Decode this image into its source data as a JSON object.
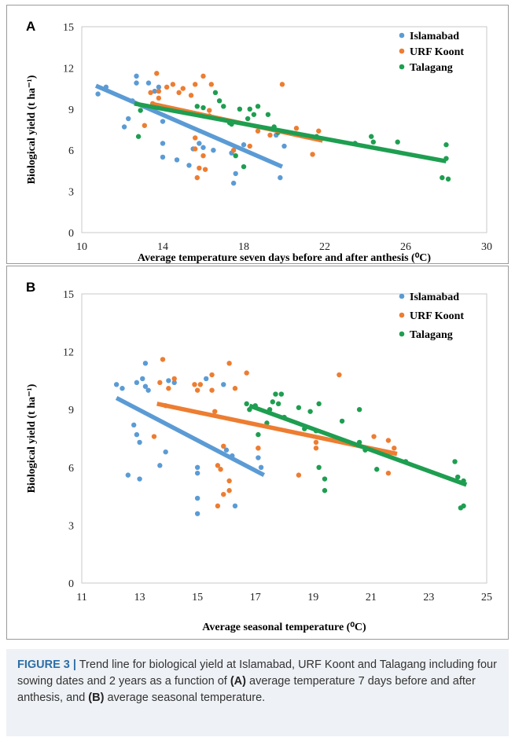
{
  "chart_data": [
    {
      "panel": "A",
      "type": "scatter",
      "xlabel": "Average temperature seven days before and after anthesis (⁰C)",
      "ylabel": "Biological yield (t ha⁻¹)",
      "xlim": [
        10,
        30
      ],
      "ylim": [
        0,
        15
      ],
      "xticks": [
        "10",
        "14",
        "18",
        "22",
        "26",
        "30"
      ],
      "yticks": [
        "0",
        "3",
        "6",
        "9",
        "12",
        "15"
      ],
      "legend_position": "top-right",
      "series": [
        {
          "name": "Islamabad",
          "color": "#5b9bd5",
          "points": [
            [
              10.8,
              10.1
            ],
            [
              11.2,
              10.6
            ],
            [
              12.1,
              7.7
            ],
            [
              12.3,
              8.3
            ],
            [
              12.5,
              9.6
            ],
            [
              12.7,
              10.9
            ],
            [
              12.7,
              11.4
            ],
            [
              13.3,
              10.9
            ],
            [
              13.6,
              10.3
            ],
            [
              13.8,
              10.6
            ],
            [
              14.0,
              8.1
            ],
            [
              14.0,
              6.5
            ],
            [
              14.0,
              5.5
            ],
            [
              14.7,
              5.3
            ],
            [
              15.3,
              4.9
            ],
            [
              15.5,
              6.1
            ],
            [
              15.8,
              6.5
            ],
            [
              16.0,
              6.2
            ],
            [
              16.5,
              6.0
            ],
            [
              17.4,
              5.8
            ],
            [
              17.6,
              4.3
            ],
            [
              17.5,
              3.6
            ],
            [
              18.0,
              6.4
            ],
            [
              19.6,
              7.1
            ],
            [
              19.8,
              4.0
            ],
            [
              20.0,
              6.3
            ]
          ],
          "trend": [
            [
              10.7,
              10.7
            ],
            [
              19.9,
              4.8
            ]
          ]
        },
        {
          "name": "URF Koont",
          "color": "#ed7d31",
          "points": [
            [
              13.1,
              7.8
            ],
            [
              13.4,
              10.2
            ],
            [
              13.5,
              9.4
            ],
            [
              13.7,
              11.6
            ],
            [
              13.8,
              10.3
            ],
            [
              13.8,
              9.8
            ],
            [
              14.2,
              10.6
            ],
            [
              14.5,
              10.8
            ],
            [
              14.8,
              10.2
            ],
            [
              15.0,
              10.5
            ],
            [
              15.4,
              10.0
            ],
            [
              15.6,
              10.8
            ],
            [
              15.6,
              6.9
            ],
            [
              15.6,
              6.1
            ],
            [
              15.7,
              4.0
            ],
            [
              15.8,
              4.7
            ],
            [
              16.0,
              11.4
            ],
            [
              16.0,
              5.6
            ],
            [
              16.1,
              4.6
            ],
            [
              16.3,
              8.9
            ],
            [
              16.4,
              10.8
            ],
            [
              17.5,
              6.0
            ],
            [
              18.3,
              6.3
            ],
            [
              18.7,
              7.4
            ],
            [
              19.3,
              7.1
            ],
            [
              19.9,
              10.8
            ],
            [
              20.6,
              7.6
            ],
            [
              21.4,
              5.7
            ],
            [
              21.7,
              7.4
            ]
          ],
          "trend": [
            [
              13.4,
              9.4
            ],
            [
              21.9,
              6.7
            ]
          ]
        },
        {
          "name": "Talagang",
          "color": "#1e9e50",
          "points": [
            [
              12.8,
              7.0
            ],
            [
              12.9,
              8.9
            ],
            [
              15.7,
              9.2
            ],
            [
              16.0,
              9.1
            ],
            [
              16.3,
              8.5
            ],
            [
              16.6,
              10.2
            ],
            [
              16.8,
              9.6
            ],
            [
              17.0,
              9.2
            ],
            [
              17.3,
              8.0
            ],
            [
              17.4,
              7.9
            ],
            [
              17.6,
              5.6
            ],
            [
              17.8,
              9.0
            ],
            [
              18.0,
              4.8
            ],
            [
              18.2,
              8.3
            ],
            [
              18.3,
              9.0
            ],
            [
              18.5,
              8.6
            ],
            [
              18.7,
              9.2
            ],
            [
              19.2,
              8.6
            ],
            [
              19.5,
              7.7
            ],
            [
              19.7,
              7.3
            ],
            [
              21.6,
              7.0
            ],
            [
              21.8,
              6.8
            ],
            [
              23.5,
              6.5
            ],
            [
              24.3,
              7.0
            ],
            [
              24.4,
              6.6
            ],
            [
              25.6,
              6.6
            ],
            [
              28.0,
              6.4
            ],
            [
              28.0,
              5.4
            ],
            [
              28.1,
              3.9
            ],
            [
              27.8,
              4.0
            ]
          ],
          "trend": [
            [
              12.6,
              9.4
            ],
            [
              28.0,
              5.2
            ]
          ]
        }
      ]
    },
    {
      "panel": "B",
      "type": "scatter",
      "xlabel": "Average seasonal temperature (⁰C)",
      "ylabel": "Biological yield (t ha⁻¹)",
      "xlim": [
        11,
        25
      ],
      "ylim": [
        0,
        15
      ],
      "xticks": [
        "11",
        "13",
        "15",
        "17",
        "19",
        "21",
        "23",
        "25"
      ],
      "yticks": [
        "0",
        "3",
        "6",
        "9",
        "12",
        "15"
      ],
      "legend_position": "top-right",
      "series": [
        {
          "name": "Islamabad",
          "color": "#5b9bd5",
          "points": [
            [
              12.2,
              10.3
            ],
            [
              12.4,
              10.1
            ],
            [
              12.6,
              5.6
            ],
            [
              12.8,
              8.2
            ],
            [
              12.9,
              7.7
            ],
            [
              12.9,
              10.4
            ],
            [
              13.0,
              7.3
            ],
            [
              13.0,
              5.4
            ],
            [
              13.1,
              10.6
            ],
            [
              13.2,
              10.2
            ],
            [
              13.2,
              11.4
            ],
            [
              13.3,
              10.0
            ],
            [
              13.7,
              6.1
            ],
            [
              13.9,
              6.8
            ],
            [
              14.0,
              10.5
            ],
            [
              14.2,
              10.4
            ],
            [
              15.0,
              5.7
            ],
            [
              15.0,
              6.0
            ],
            [
              15.0,
              4.4
            ],
            [
              15.0,
              3.6
            ],
            [
              15.3,
              10.6
            ],
            [
              15.9,
              10.3
            ],
            [
              16.0,
              6.9
            ],
            [
              16.2,
              6.6
            ],
            [
              16.3,
              4.0
            ],
            [
              17.1,
              6.5
            ],
            [
              17.2,
              6.0
            ]
          ],
          "trend": [
            [
              12.2,
              9.6
            ],
            [
              17.3,
              5.6
            ]
          ]
        },
        {
          "name": "URF Koont",
          "color": "#ed7d31",
          "points": [
            [
              13.5,
              7.6
            ],
            [
              13.7,
              10.4
            ],
            [
              13.8,
              11.6
            ],
            [
              13.9,
              9.2
            ],
            [
              14.0,
              10.1
            ],
            [
              14.2,
              10.6
            ],
            [
              14.9,
              10.3
            ],
            [
              15.0,
              10.0
            ],
            [
              15.1,
              10.3
            ],
            [
              15.5,
              10.0
            ],
            [
              15.5,
              10.8
            ],
            [
              15.6,
              8.9
            ],
            [
              15.7,
              6.1
            ],
            [
              15.7,
              4.0
            ],
            [
              15.8,
              5.9
            ],
            [
              15.9,
              4.6
            ],
            [
              15.9,
              7.1
            ],
            [
              16.1,
              11.4
            ],
            [
              16.1,
              5.3
            ],
            [
              16.1,
              4.8
            ],
            [
              16.3,
              10.1
            ],
            [
              16.7,
              10.9
            ],
            [
              17.1,
              7.0
            ],
            [
              17.1,
              7.0
            ],
            [
              18.5,
              5.6
            ],
            [
              19.1,
              7.0
            ],
            [
              19.1,
              7.3
            ],
            [
              19.9,
              10.8
            ],
            [
              21.1,
              7.6
            ],
            [
              21.6,
              5.7
            ],
            [
              21.6,
              7.4
            ],
            [
              21.8,
              7.0
            ]
          ],
          "trend": [
            [
              13.6,
              9.3
            ],
            [
              21.9,
              6.7
            ]
          ]
        },
        {
          "name": "Talagang",
          "color": "#1e9e50",
          "points": [
            [
              16.7,
              9.3
            ],
            [
              16.8,
              9.0
            ],
            [
              17.0,
              9.2
            ],
            [
              17.1,
              7.7
            ],
            [
              17.4,
              8.3
            ],
            [
              17.5,
              9.0
            ],
            [
              17.6,
              9.4
            ],
            [
              17.7,
              9.8
            ],
            [
              17.8,
              9.3
            ],
            [
              17.9,
              9.8
            ],
            [
              18.0,
              8.6
            ],
            [
              18.5,
              9.1
            ],
            [
              18.7,
              8.0
            ],
            [
              18.9,
              8.9
            ],
            [
              19.1,
              7.9
            ],
            [
              19.2,
              9.3
            ],
            [
              19.2,
              6.0
            ],
            [
              19.4,
              5.4
            ],
            [
              19.4,
              4.8
            ],
            [
              20.0,
              8.4
            ],
            [
              20.6,
              9.0
            ],
            [
              20.6,
              7.3
            ],
            [
              20.8,
              6.9
            ],
            [
              21.2,
              5.9
            ],
            [
              22.2,
              6.3
            ],
            [
              23.9,
              6.3
            ],
            [
              24.0,
              5.5
            ],
            [
              24.1,
              3.9
            ],
            [
              24.2,
              5.3
            ],
            [
              24.2,
              4.0
            ]
          ],
          "trend": [
            [
              16.8,
              9.2
            ],
            [
              24.3,
              5.1
            ]
          ]
        }
      ]
    }
  ],
  "panels": {
    "a_letter": "A",
    "b_letter": "B"
  },
  "caption": {
    "label": "FIGURE 3 |",
    "t1": " Trend line for biological yield at Islamabad, URF Koont and Talagang including four sowing dates and 2 years as a function of ",
    "a": "(A)",
    "t2": " average temperature 7 days before and after anthesis, and ",
    "b": "(B)",
    "t3": " average seasonal temperature."
  }
}
